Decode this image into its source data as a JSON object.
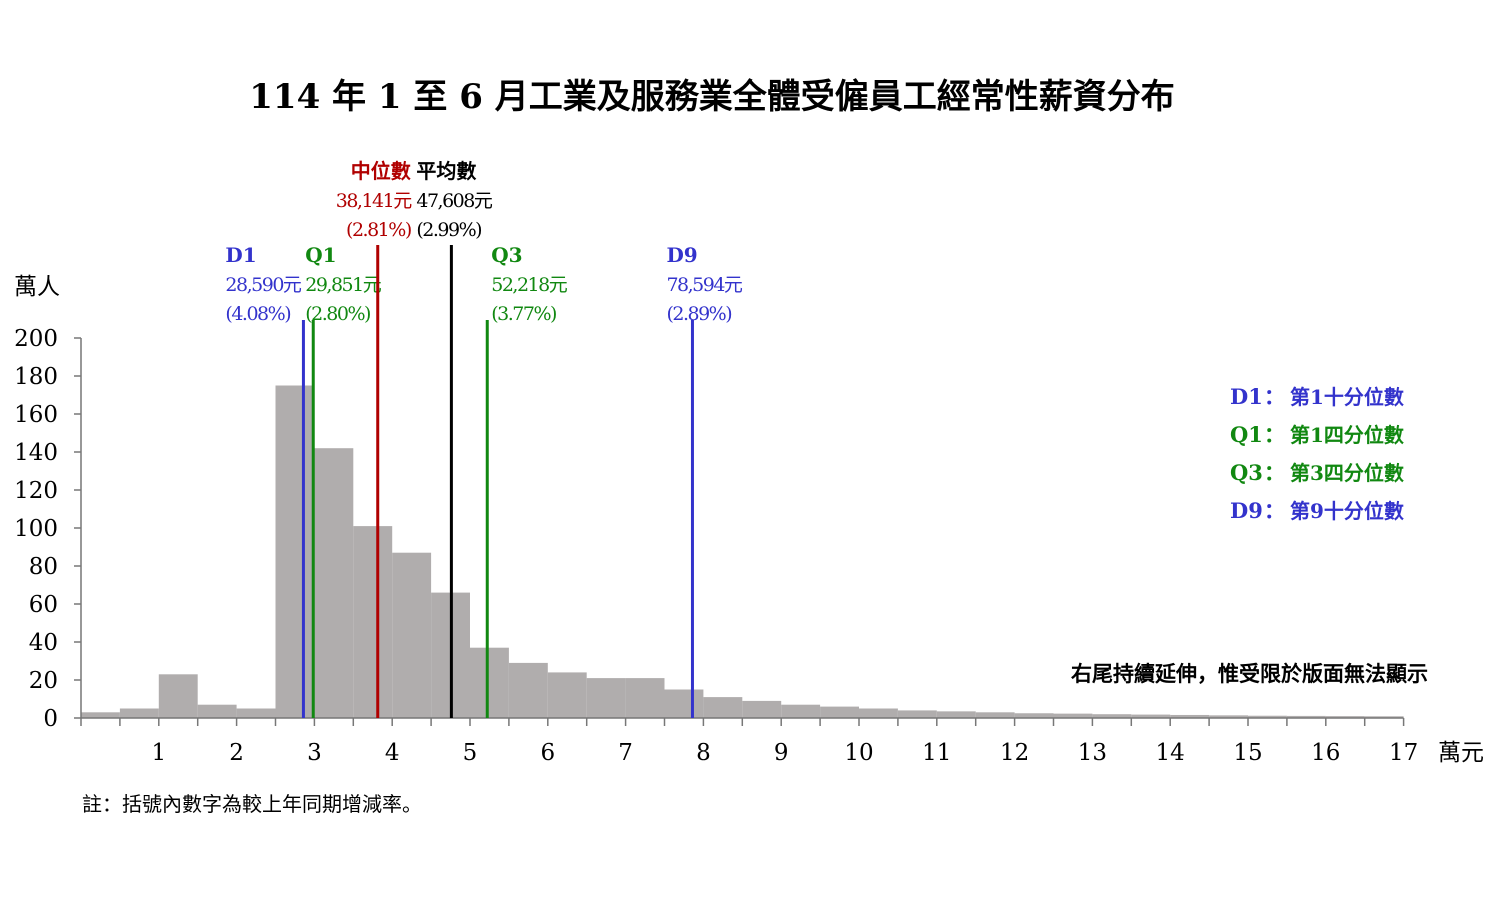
{
  "chart_data": {
    "type": "bar",
    "title": "114 年 1 至 6 月工業及服務業全體受僱員工經常性薪資分布",
    "ylabel": "萬人",
    "xlabel": "萬元",
    "ylim": [
      0,
      200
    ],
    "y_ticks": [
      "0",
      "20",
      "40",
      "60",
      "80",
      "100",
      "120",
      "140",
      "160",
      "180",
      "200"
    ],
    "x_ticks": [
      "1",
      "2",
      "3",
      "4",
      "5",
      "6",
      "7",
      "8",
      "9",
      "10",
      "11",
      "12",
      "13",
      "14",
      "15",
      "16",
      "17"
    ],
    "bin_width": 0.5,
    "bin_start": 0,
    "values": [
      3,
      5,
      23,
      7,
      5,
      175,
      142,
      101,
      87,
      66,
      37,
      29,
      24,
      21,
      21,
      15,
      11,
      9,
      7,
      6,
      5,
      4,
      3.5,
      3,
      2.5,
      2.3,
      2,
      1.8,
      1.6,
      1.4,
      1.2,
      1.1,
      1.0,
      0.9
    ],
    "bar_color": "#b0adad",
    "markers": [
      {
        "label": "D1",
        "value": 2.859,
        "amount": "28,590元",
        "change": "(4.08%)",
        "color": "#3333cc",
        "label_pos": "left"
      },
      {
        "label": "Q1",
        "value": 2.9851,
        "amount": "29,851元",
        "change": "(2.80%)",
        "color": "#118811",
        "label_pos": "right"
      },
      {
        "label": "中位數",
        "value": 3.8141,
        "amount": "38,141元",
        "change": "(2.81%)",
        "color": "#b00000",
        "label_pos": "top-left"
      },
      {
        "label": "平均數",
        "value": 4.7608,
        "amount": "47,608元",
        "change": "(2.99%)",
        "color": "#000000",
        "label_pos": "top-right"
      },
      {
        "label": "Q3",
        "value": 5.2218,
        "amount": "52,218元",
        "change": "(3.77%)",
        "color": "#118811",
        "label_pos": "right"
      },
      {
        "label": "D9",
        "value": 7.8594,
        "amount": "78,594元",
        "change": "(2.89%)",
        "color": "#3333cc",
        "label_pos": "right"
      }
    ],
    "legend": [
      {
        "key": "D1",
        "sep": "：",
        "text": "第1十分位數",
        "color": "#3333cc"
      },
      {
        "key": "Q1",
        "sep": "：",
        "text": "第1四分位數",
        "color": "#118811"
      },
      {
        "key": "Q3",
        "sep": "：",
        "text": "第3四分位數",
        "color": "#118811"
      },
      {
        "key": "D9",
        "sep": "：",
        "text": "第9十分位數",
        "color": "#3333cc"
      }
    ],
    "legend_position": "right",
    "annotation": "右尾持續延伸，惟受限於版面無法顯示",
    "footnote": "註：括號內數字為較上年同期增減率。",
    "grid": false
  }
}
